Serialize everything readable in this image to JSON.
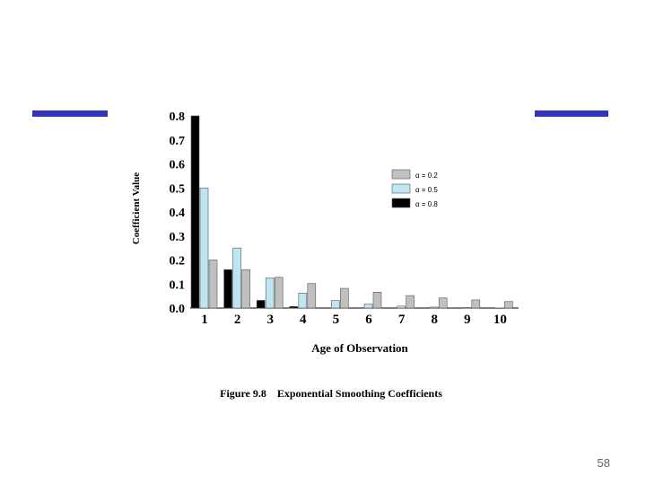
{
  "page": {
    "number": "58"
  },
  "colors": {
    "accent_rule": "#3333bb",
    "alpha_02": "#c0c0c0",
    "alpha_05": "#bde6f2",
    "alpha_08": "#000000"
  },
  "chart_data": {
    "type": "bar",
    "title": "Figure 9.8    Exponential Smoothing Coefficients",
    "xlabel": "Age of Observation",
    "ylabel": "Coefficient Value",
    "categories": [
      "1",
      "2",
      "3",
      "4",
      "5",
      "6",
      "7",
      "8",
      "9",
      "10"
    ],
    "ylim": [
      0,
      0.8
    ],
    "yticks": [
      0.0,
      0.1,
      0.2,
      0.3,
      0.4,
      0.5,
      0.6,
      0.7,
      0.8
    ],
    "ytick_labels": [
      "0.0",
      "0.1",
      "0.2",
      "0.3",
      "0.4",
      "0.5",
      "0.6",
      "0.7",
      "0.8"
    ],
    "grid": false,
    "legend_position": "right",
    "series": [
      {
        "name": "α = 0.8",
        "color": "#000000",
        "values": [
          0.8,
          0.16,
          0.032,
          0.0064,
          0.0013,
          0.0003,
          0.0001,
          0.0,
          0.0,
          0.0
        ]
      },
      {
        "name": "α = 0.5",
        "color": "#bde6f2",
        "values": [
          0.5,
          0.25,
          0.125,
          0.0625,
          0.031,
          0.016,
          0.008,
          0.004,
          0.002,
          0.001
        ]
      },
      {
        "name": "α = 0.2",
        "color": "#c0c0c0",
        "values": [
          0.2,
          0.16,
          0.128,
          0.102,
          0.082,
          0.066,
          0.052,
          0.042,
          0.034,
          0.027
        ]
      }
    ]
  }
}
